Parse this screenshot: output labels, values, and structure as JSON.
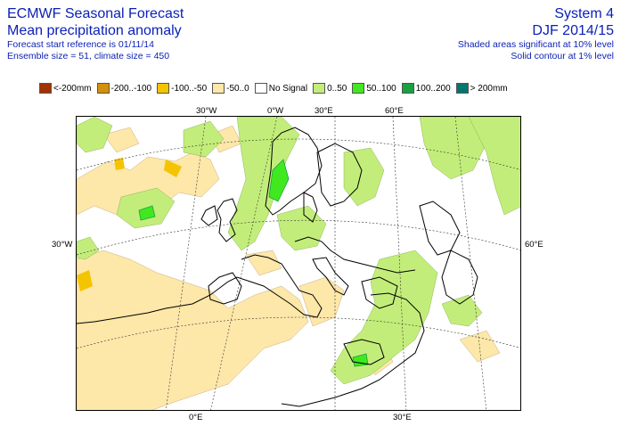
{
  "header": {
    "title_line1": "ECMWF Seasonal Forecast",
    "title_line2": "Mean precipitation anomaly",
    "info_line1": "Forecast start reference is 01/11/14",
    "info_line2": "Ensemble size = 51, climate size = 450",
    "system": "System 4",
    "period": "DJF 2014/15",
    "sig_line1": "Shaded areas significant at 10% level",
    "sig_line2": "Solid contour at 1% level"
  },
  "legend": [
    {
      "label": "<-200mm",
      "color": "#a33200"
    },
    {
      "label": "-200..-100",
      "color": "#d4900a"
    },
    {
      "label": "-100..-50",
      "color": "#f5c400"
    },
    {
      "label": "-50..0",
      "color": "#fde7a9"
    },
    {
      "label": "No Signal",
      "color": "#ffffff"
    },
    {
      "label": "0..50",
      "color": "#c3ed7a"
    },
    {
      "label": "50..100",
      "color": "#40e820"
    },
    {
      "label": "100..200",
      "color": "#1aa040"
    },
    {
      "label": "> 200mm",
      "color": "#00766e"
    }
  ],
  "axes": {
    "top_30w": "30°W",
    "top_0w": "0°W",
    "top_30e": "30°E",
    "top_60e": "60°E",
    "left_30w": "30°W",
    "right_60e": "60°E",
    "bottom_0e": "0°E",
    "bottom_30e": "30°E"
  }
}
